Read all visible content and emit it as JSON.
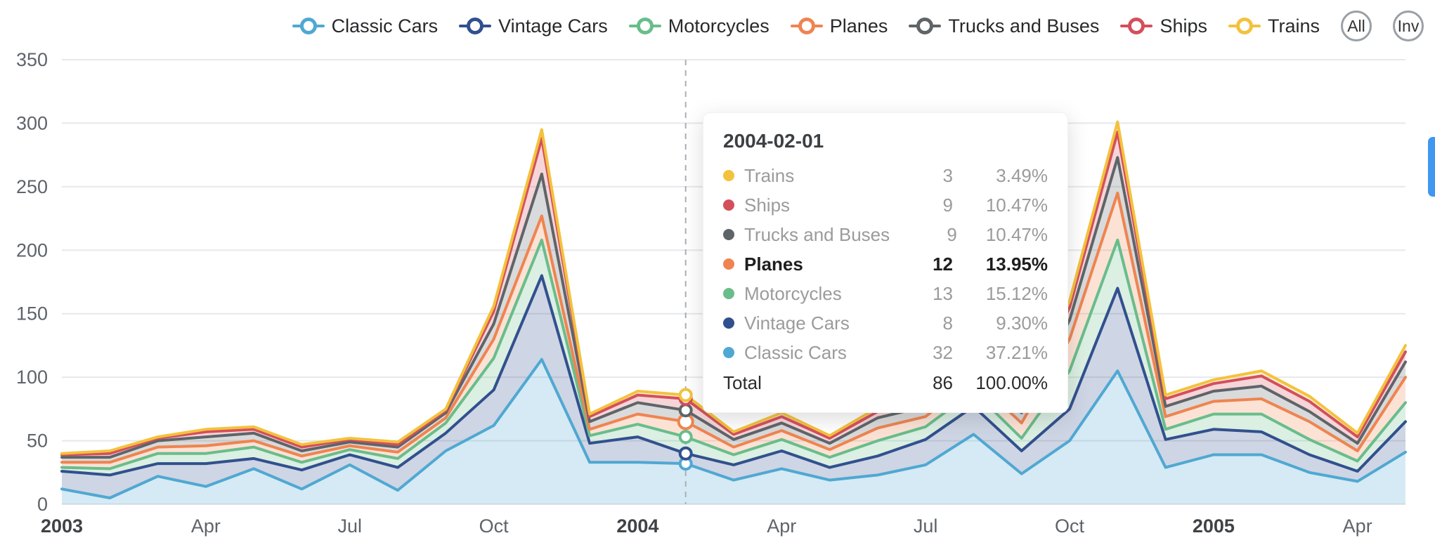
{
  "legend": {
    "items": [
      {
        "label": "Classic Cars",
        "color": "#4fa8d2"
      },
      {
        "label": "Vintage Cars",
        "color": "#31508e"
      },
      {
        "label": "Motorcycles",
        "color": "#69bd8b"
      },
      {
        "label": "Planes",
        "color": "#ef8450"
      },
      {
        "label": "Trucks and Buses",
        "color": "#5f6468"
      },
      {
        "label": "Ships",
        "color": "#d44f5b"
      },
      {
        "label": "Trains",
        "color": "#f3c23d"
      }
    ],
    "buttons": [
      {
        "label": "All"
      },
      {
        "label": "Inv"
      }
    ]
  },
  "tooltip": {
    "title": "2004-02-01",
    "rows": [
      {
        "label": "Trains",
        "value": "3",
        "percent": "3.49%",
        "color": "#f3c23d",
        "emphasis": false
      },
      {
        "label": "Ships",
        "value": "9",
        "percent": "10.47%",
        "color": "#d44f5b",
        "emphasis": false
      },
      {
        "label": "Trucks and Buses",
        "value": "9",
        "percent": "10.47%",
        "color": "#5f6468",
        "emphasis": false
      },
      {
        "label": "Planes",
        "value": "12",
        "percent": "13.95%",
        "color": "#ef8450",
        "emphasis": true
      },
      {
        "label": "Motorcycles",
        "value": "13",
        "percent": "15.12%",
        "color": "#69bd8b",
        "emphasis": false
      },
      {
        "label": "Vintage Cars",
        "value": "8",
        "percent": "9.30%",
        "color": "#31508e",
        "emphasis": false
      },
      {
        "label": "Classic Cars",
        "value": "32",
        "percent": "37.21%",
        "color": "#4fa8d2",
        "emphasis": false
      }
    ],
    "total": {
      "label": "Total",
      "value": "86",
      "percent": "100.00%"
    }
  },
  "edge_indicator": {
    "color": "#3f97f0"
  },
  "chart_data": {
    "type": "area",
    "stacked": true,
    "title": "",
    "xlabel": "",
    "ylabel": "",
    "ylim": [
      0,
      350
    ],
    "y_ticks": [
      0,
      50,
      100,
      150,
      200,
      250,
      300,
      350
    ],
    "grid": true,
    "legend_position": "top-right",
    "highlight_x": "2004-02",
    "highlight_index": 13,
    "emphasis_series": "Planes",
    "x": [
      "2003-01",
      "2003-02",
      "2003-03",
      "2003-04",
      "2003-05",
      "2003-06",
      "2003-07",
      "2003-08",
      "2003-09",
      "2003-10",
      "2003-11",
      "2003-12",
      "2004-01",
      "2004-02",
      "2004-03",
      "2004-04",
      "2004-05",
      "2004-06",
      "2004-07",
      "2004-08",
      "2004-09",
      "2004-10",
      "2004-11",
      "2004-12",
      "2005-01",
      "2005-02",
      "2005-03",
      "2005-04",
      "2005-05"
    ],
    "x_tick_labels": [
      {
        "index": 0,
        "label": "2003",
        "bold": true
      },
      {
        "index": 3,
        "label": "Apr",
        "bold": false
      },
      {
        "index": 6,
        "label": "Jul",
        "bold": false
      },
      {
        "index": 9,
        "label": "Oct",
        "bold": false
      },
      {
        "index": 12,
        "label": "2004",
        "bold": true
      },
      {
        "index": 15,
        "label": "Apr",
        "bold": false
      },
      {
        "index": 18,
        "label": "Jul",
        "bold": false
      },
      {
        "index": 21,
        "label": "Oct",
        "bold": false
      },
      {
        "index": 24,
        "label": "2005",
        "bold": true
      },
      {
        "index": 27,
        "label": "Apr",
        "bold": false
      }
    ],
    "series": [
      {
        "name": "Classic Cars",
        "color": "#4fa8d2",
        "values": [
          12,
          5,
          22,
          14,
          28,
          12,
          31,
          11,
          42,
          62,
          114,
          33,
          33,
          32,
          19,
          28,
          19,
          23,
          31,
          55,
          24,
          50,
          105,
          29,
          39,
          39,
          25,
          18,
          41
        ]
      },
      {
        "name": "Vintage Cars",
        "color": "#31508e",
        "values": [
          14,
          18,
          10,
          18,
          8,
          15,
          8,
          18,
          14,
          28,
          66,
          15,
          20,
          8,
          12,
          14,
          10,
          15,
          20,
          22,
          18,
          25,
          65,
          22,
          20,
          18,
          14,
          8,
          24
        ]
      },
      {
        "name": "Motorcycles",
        "color": "#69bd8b",
        "values": [
          3,
          5,
          8,
          8,
          9,
          6,
          4,
          7,
          8,
          25,
          28,
          6,
          10,
          13,
          8,
          9,
          8,
          12,
          10,
          12,
          10,
          30,
          38,
          8,
          12,
          14,
          12,
          8,
          15
        ]
      },
      {
        "name": "Planes",
        "color": "#ef8450",
        "values": [
          4,
          5,
          5,
          6,
          5,
          5,
          3,
          5,
          4,
          15,
          19,
          5,
          8,
          12,
          6,
          7,
          6,
          10,
          8,
          10,
          12,
          25,
          37,
          10,
          10,
          12,
          14,
          8,
          20
        ]
      },
      {
        "name": "Trucks and Buses",
        "color": "#5f6468",
        "values": [
          4,
          4,
          5,
          7,
          6,
          4,
          3,
          4,
          4,
          12,
          33,
          6,
          9,
          9,
          6,
          6,
          5,
          8,
          8,
          8,
          8,
          15,
          28,
          8,
          8,
          10,
          8,
          6,
          12
        ]
      },
      {
        "name": "Ships",
        "color": "#d44f5b",
        "values": [
          2,
          3,
          2,
          4,
          3,
          3,
          2,
          2,
          2,
          10,
          28,
          4,
          6,
          9,
          4,
          5,
          4,
          5,
          6,
          6,
          6,
          10,
          20,
          6,
          6,
          8,
          8,
          5,
          8
        ]
      },
      {
        "name": "Trains",
        "color": "#f3c23d",
        "values": [
          1,
          2,
          1,
          2,
          2,
          2,
          1,
          2,
          1,
          4,
          7,
          2,
          3,
          3,
          2,
          3,
          2,
          3,
          3,
          3,
          3,
          5,
          8,
          3,
          3,
          4,
          4,
          3,
          5
        ]
      }
    ]
  }
}
